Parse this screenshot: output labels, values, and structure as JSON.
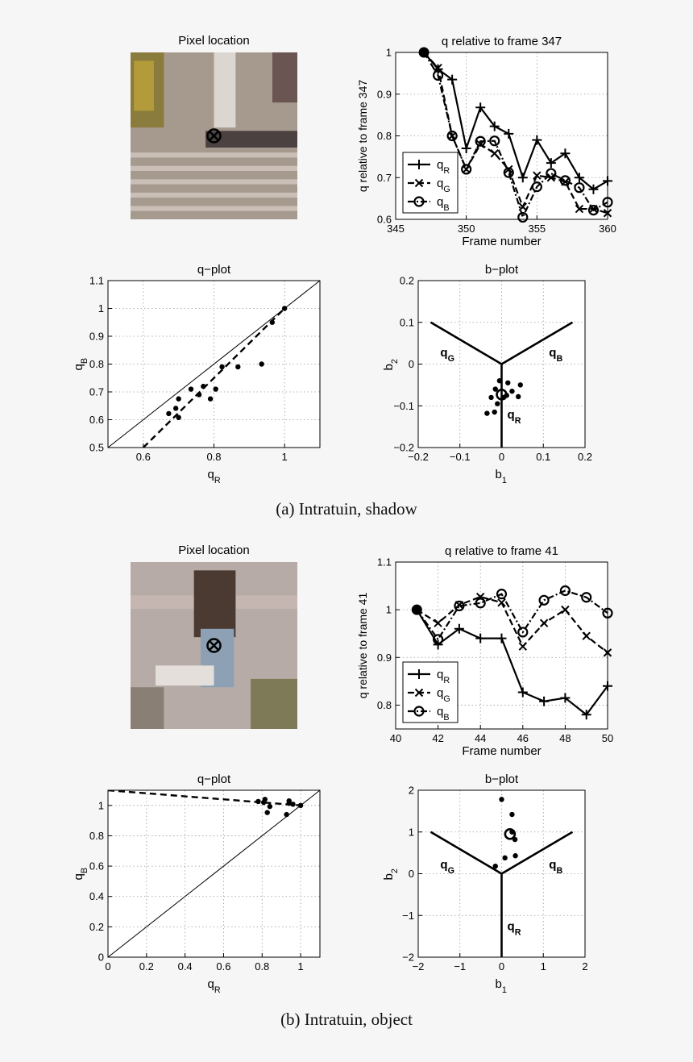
{
  "colors": {
    "background": "#f6f6f6",
    "axes_bg": "#ffffff",
    "ink": "#000000"
  },
  "captions": [
    "(a) Intratuin, shadow",
    "(b) Intratuin, object"
  ],
  "photos": [
    {
      "title": "Pixel location",
      "scene": "shadow"
    },
    {
      "title": "Pixel location",
      "scene": "object"
    }
  ],
  "chart_data": [
    {
      "type": "line",
      "title": "q relative to frame 347",
      "xlabel": "Frame number",
      "ylabel": "q relative to frame 347",
      "xlim": [
        345,
        360
      ],
      "ylim": [
        0.6,
        1.0
      ],
      "xticks": [
        345,
        350,
        355,
        360
      ],
      "xtick_labels": [
        "345",
        "350",
        "355",
        "360"
      ],
      "yticks": [
        0.6,
        0.7,
        0.8,
        0.9,
        1.0
      ],
      "ytick_labels": [
        "0.6",
        "0.7",
        "0.8",
        "0.9",
        "1"
      ],
      "grid": true,
      "legend_position": "bottom-left",
      "x": [
        347,
        348,
        349,
        350,
        351,
        352,
        353,
        354,
        355,
        356,
        357,
        358,
        359,
        360
      ],
      "series": [
        {
          "name": "qR",
          "sub": "R",
          "marker": "plus",
          "style": "solid",
          "values": [
            1.0,
            0.96,
            0.935,
            0.77,
            0.868,
            0.823,
            0.805,
            0.7,
            0.79,
            0.735,
            0.758,
            0.7,
            0.672,
            0.692
          ]
        },
        {
          "name": "qG",
          "sub": "G",
          "marker": "x",
          "style": "dashed",
          "values": [
            1.0,
            0.963,
            0.8,
            0.72,
            0.78,
            0.758,
            0.72,
            0.63,
            0.705,
            0.7,
            0.69,
            0.625,
            0.625,
            0.615
          ]
        },
        {
          "name": "qB",
          "sub": "B",
          "marker": "circle",
          "style": "dashdot",
          "values": [
            1.0,
            0.945,
            0.8,
            0.72,
            0.787,
            0.788,
            0.712,
            0.605,
            0.678,
            0.71,
            0.693,
            0.676,
            0.622,
            0.641
          ]
        }
      ]
    },
    {
      "type": "scatter",
      "title": "q−plot",
      "xlabel": "q",
      "xlabel_sub": "R",
      "ylabel": "q",
      "ylabel_sub": "B",
      "xlim": [
        0.5,
        1.1
      ],
      "ylim": [
        0.5,
        1.1
      ],
      "xticks": [
        0.6,
        0.8,
        1.0
      ],
      "xtick_labels": [
        "0.6",
        "0.8",
        "1"
      ],
      "yticks": [
        0.5,
        0.6,
        0.7,
        0.8,
        0.9,
        1.0,
        1.1
      ],
      "ytick_labels": [
        "0.5",
        "0.6",
        "0.7",
        "0.8",
        "0.9",
        "1",
        "1.1"
      ],
      "grid": true,
      "points": [
        [
          1.0,
          1.0
        ],
        [
          0.965,
          0.95
        ],
        [
          0.935,
          0.8
        ],
        [
          0.868,
          0.79
        ],
        [
          0.823,
          0.79
        ],
        [
          0.805,
          0.71
        ],
        [
          0.79,
          0.675
        ],
        [
          0.77,
          0.72
        ],
        [
          0.758,
          0.69
        ],
        [
          0.735,
          0.71
        ],
        [
          0.7,
          0.675
        ],
        [
          0.7,
          0.608
        ],
        [
          0.692,
          0.641
        ],
        [
          0.672,
          0.622
        ]
      ],
      "reference_line": [
        [
          0.5,
          0.5
        ],
        [
          1.1,
          1.1
        ]
      ],
      "fit_line": [
        [
          0.6,
          0.5
        ],
        [
          1.0,
          1.0
        ]
      ]
    },
    {
      "type": "scatter",
      "title": "b−plot",
      "xlabel": "b",
      "xlabel_sub": "1",
      "ylabel": "b",
      "ylabel_sub": "2",
      "xlim": [
        -0.2,
        0.2
      ],
      "ylim": [
        -0.2,
        0.2
      ],
      "xticks": [
        -0.2,
        -0.1,
        0,
        0.1,
        0.2
      ],
      "xtick_labels": [
        "−0.2",
        "−0.1",
        "0",
        "0.1",
        "0.2"
      ],
      "yticks": [
        -0.2,
        -0.1,
        0,
        0.1,
        0.2
      ],
      "ytick_labels": [
        "−0.2",
        "−0.1",
        "0",
        "0.1",
        "0.2"
      ],
      "grid": true,
      "region_lines": [
        [
          [
            0,
            0
          ],
          [
            -0.17,
            0.1
          ]
        ],
        [
          [
            0,
            0
          ],
          [
            0.17,
            0.1
          ]
        ],
        [
          [
            0,
            0
          ],
          [
            0,
            -0.2
          ]
        ]
      ],
      "region_labels": [
        {
          "text": "q",
          "sub": "G",
          "x": -0.13,
          "y": 0.018
        },
        {
          "text": "q",
          "sub": "B",
          "x": 0.13,
          "y": 0.018
        },
        {
          "text": "q",
          "sub": "R",
          "x": 0.03,
          "y": -0.13
        }
      ],
      "points": [
        [
          -0.005,
          -0.04
        ],
        [
          0.015,
          -0.045
        ],
        [
          -0.015,
          -0.06
        ],
        [
          0.045,
          -0.05
        ],
        [
          0.025,
          -0.065
        ],
        [
          -0.025,
          -0.08
        ],
        [
          0.012,
          -0.075
        ],
        [
          0.04,
          -0.078
        ],
        [
          -0.01,
          -0.095
        ],
        [
          -0.035,
          -0.118
        ],
        [
          -0.017,
          -0.115
        ],
        [
          0.005,
          -0.08
        ]
      ],
      "mean_point": [
        0.0,
        -0.073
      ]
    },
    {
      "type": "line",
      "title": "q relative to frame 41",
      "xlabel": "Frame number",
      "ylabel": "q relative to frame 41",
      "xlim": [
        40,
        50
      ],
      "ylim": [
        0.75,
        1.1
      ],
      "xticks": [
        40,
        42,
        44,
        46,
        48,
        50
      ],
      "xtick_labels": [
        "40",
        "42",
        "44",
        "46",
        "48",
        "50"
      ],
      "yticks": [
        0.8,
        0.9,
        1.0,
        1.1
      ],
      "ytick_labels": [
        "0.8",
        "0.9",
        "1",
        "1.1"
      ],
      "grid": true,
      "legend_position": "bottom-left",
      "x": [
        41,
        42,
        43,
        44,
        45,
        46,
        47,
        48,
        49,
        50
      ],
      "series": [
        {
          "name": "qR",
          "sub": "R",
          "marker": "plus",
          "style": "solid",
          "values": [
            1.0,
            0.927,
            0.96,
            0.94,
            0.94,
            0.827,
            0.808,
            0.815,
            0.78,
            0.84
          ]
        },
        {
          "name": "qG",
          "sub": "G",
          "marker": "x",
          "style": "dashed",
          "values": [
            1.0,
            0.972,
            1.01,
            1.027,
            1.015,
            0.923,
            0.972,
            1.0,
            0.945,
            0.91
          ]
        },
        {
          "name": "qB",
          "sub": "B",
          "marker": "circle",
          "style": "dashdot",
          "values": [
            1.0,
            0.938,
            1.008,
            1.014,
            1.033,
            0.953,
            1.02,
            1.04,
            1.026,
            0.993
          ]
        }
      ]
    },
    {
      "type": "scatter",
      "title": "q−plot",
      "xlabel": "q",
      "xlabel_sub": "R",
      "ylabel": "q",
      "ylabel_sub": "B",
      "xlim": [
        0,
        1.1
      ],
      "ylim": [
        0,
        1.1
      ],
      "xticks": [
        0,
        0.2,
        0.4,
        0.6,
        0.8,
        1.0
      ],
      "xtick_labels": [
        "0",
        "0.2",
        "0.4",
        "0.6",
        "0.8",
        "1"
      ],
      "yticks": [
        0,
        0.2,
        0.4,
        0.6,
        0.8,
        1.0
      ],
      "ytick_labels": [
        "0",
        "0.2",
        "0.4",
        "0.6",
        "0.8",
        "1"
      ],
      "grid": true,
      "points": [
        [
          1.0,
          1.0
        ],
        [
          0.94,
          1.03
        ],
        [
          0.927,
          0.94
        ],
        [
          0.96,
          1.008
        ],
        [
          0.94,
          1.014
        ],
        [
          0.827,
          0.953
        ],
        [
          0.808,
          1.02
        ],
        [
          0.815,
          1.04
        ],
        [
          0.78,
          1.026
        ],
        [
          0.84,
          0.993
        ]
      ],
      "reference_line": [
        [
          0,
          0
        ],
        [
          1.1,
          1.1
        ]
      ],
      "fit_line": [
        [
          0,
          1.1
        ],
        [
          1.0,
          1.0
        ]
      ]
    },
    {
      "type": "scatter",
      "title": "b−plot",
      "xlabel": "b",
      "xlabel_sub": "1",
      "ylabel": "b",
      "ylabel_sub": "2",
      "xlim": [
        -2,
        2
      ],
      "ylim": [
        -2,
        2
      ],
      "xticks": [
        -2,
        -1,
        0,
        1,
        2
      ],
      "xtick_labels": [
        "−2",
        "−1",
        "0",
        "1",
        "2"
      ],
      "yticks": [
        -2,
        -1,
        0,
        1,
        2
      ],
      "ytick_labels": [
        "−2",
        "−1",
        "0",
        "1",
        "2"
      ],
      "grid": true,
      "region_lines": [
        [
          [
            0,
            0
          ],
          [
            -1.7,
            1.0
          ]
        ],
        [
          [
            0,
            0
          ],
          [
            1.7,
            1.0
          ]
        ],
        [
          [
            0,
            0
          ],
          [
            0,
            -2
          ]
        ]
      ],
      "region_labels": [
        {
          "text": "q",
          "sub": "G",
          "x": -1.3,
          "y": 0.13
        },
        {
          "text": "q",
          "sub": "B",
          "x": 1.3,
          "y": 0.13
        },
        {
          "text": "q",
          "sub": "R",
          "x": 0.3,
          "y": -1.35
        }
      ],
      "points": [
        [
          0.0,
          1.78
        ],
        [
          0.25,
          1.42
        ],
        [
          0.25,
          1.0
        ],
        [
          0.32,
          0.82
        ],
        [
          0.08,
          0.38
        ],
        [
          0.33,
          0.43
        ],
        [
          -0.15,
          0.18
        ]
      ],
      "mean_point": [
        0.2,
        0.95
      ]
    }
  ]
}
